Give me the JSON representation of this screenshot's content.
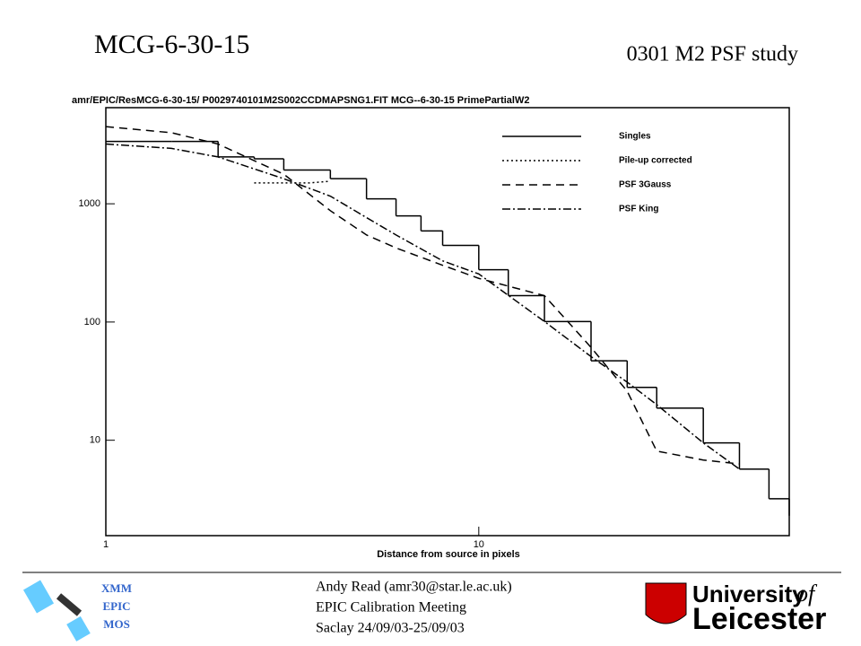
{
  "slide": {
    "title": "MCG-6-30-15",
    "subtitle": "0301 M2 PSF study",
    "footer": {
      "author": "Andy Read (amr30@star.le.ac.uk)",
      "meeting": "EPIC Calibration Meeting",
      "date": "Saclay 24/09/03-25/09/03",
      "badge": [
        "XMM",
        "EPIC",
        "MOS"
      ],
      "university": [
        "University",
        "of",
        "Leicester"
      ]
    }
  },
  "chart_data": {
    "type": "line",
    "log_x": true,
    "log_y": true,
    "title": "amr/EPIC/ResMCG-6-30-15/ P0029740101M2S002CCDMAPSNG1.FIT MCG--6-30-15 PrimePartialW2",
    "x_label": "Distance from source in pixels",
    "xlim": [
      1,
      68
    ],
    "ylim": [
      1.56,
      6500
    ],
    "xticks": [
      1,
      10
    ],
    "yticks": [
      10,
      100,
      1000
    ],
    "legend_position": "upper right",
    "series": [
      {
        "name": "Singles",
        "color": "#000000",
        "dash": "solid",
        "step": true,
        "x": [
          1,
          1.5,
          2,
          2.5,
          3,
          4,
          5,
          6,
          7,
          8,
          10,
          12,
          15,
          20,
          25,
          30,
          40,
          50,
          60,
          68
        ],
        "values": [
          3370,
          3370,
          2490,
          2400,
          1930,
          1630,
          1100,
          790,
          590,
          445,
          277,
          167,
          101,
          47,
          28,
          18.7,
          9.5,
          5.7,
          3.2,
          2.3
        ]
      },
      {
        "name": "Pile-up corrected",
        "color": "#000000",
        "dash": "dotted",
        "x": [
          2.5,
          3.5,
          4
        ],
        "values": [
          1500,
          1500,
          1550
        ]
      },
      {
        "name": "PSF 3Gauss",
        "color": "#000000",
        "dash": "dashed",
        "x": [
          1,
          1.5,
          2,
          3,
          4,
          5,
          6,
          8,
          10,
          15,
          20,
          25,
          30,
          40,
          50
        ],
        "values": [
          4490,
          3990,
          3200,
          1780,
          874,
          545,
          423,
          302,
          234,
          167,
          61,
          26,
          8.1,
          6.8,
          6.3
        ]
      },
      {
        "name": "PSF King",
        "color": "#000000",
        "dash": "dashdot",
        "x": [
          1,
          1.5,
          2,
          3,
          4,
          5,
          6,
          8,
          10,
          15,
          20,
          25,
          30,
          40,
          50
        ],
        "values": [
          3200,
          2940,
          2490,
          1630,
          1160,
          764,
          545,
          329,
          255,
          101,
          51,
          31,
          20,
          9.5,
          5.7
        ]
      }
    ]
  }
}
